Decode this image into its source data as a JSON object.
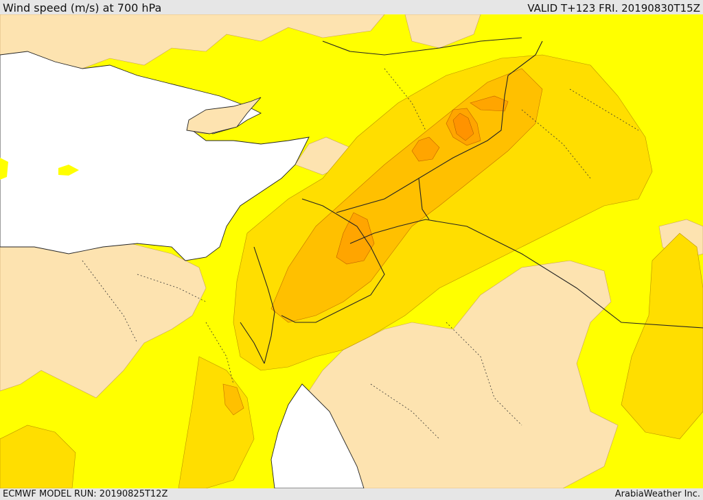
{
  "header": {
    "title": "Wind speed (m/s) at 700 hPa",
    "valid": "VALID T+123 FRI. 20190830T15Z"
  },
  "footer": {
    "model_run": "ECMWF MODEL RUN: 20190825T12Z",
    "credit": "ArabiaWeather Inc."
  },
  "map": {
    "variable": "wind speed",
    "level": "700 hPa",
    "colors": {
      "sea": "#ffffff",
      "low_wind": "#fde3b0",
      "band_1": "#ffff00",
      "band_2": "#ffde00",
      "band_3": "#ffc000",
      "band_4": "#ffa500",
      "band_5": "#ff9300",
      "border": "#222222",
      "admin_border": "#333333"
    }
  }
}
